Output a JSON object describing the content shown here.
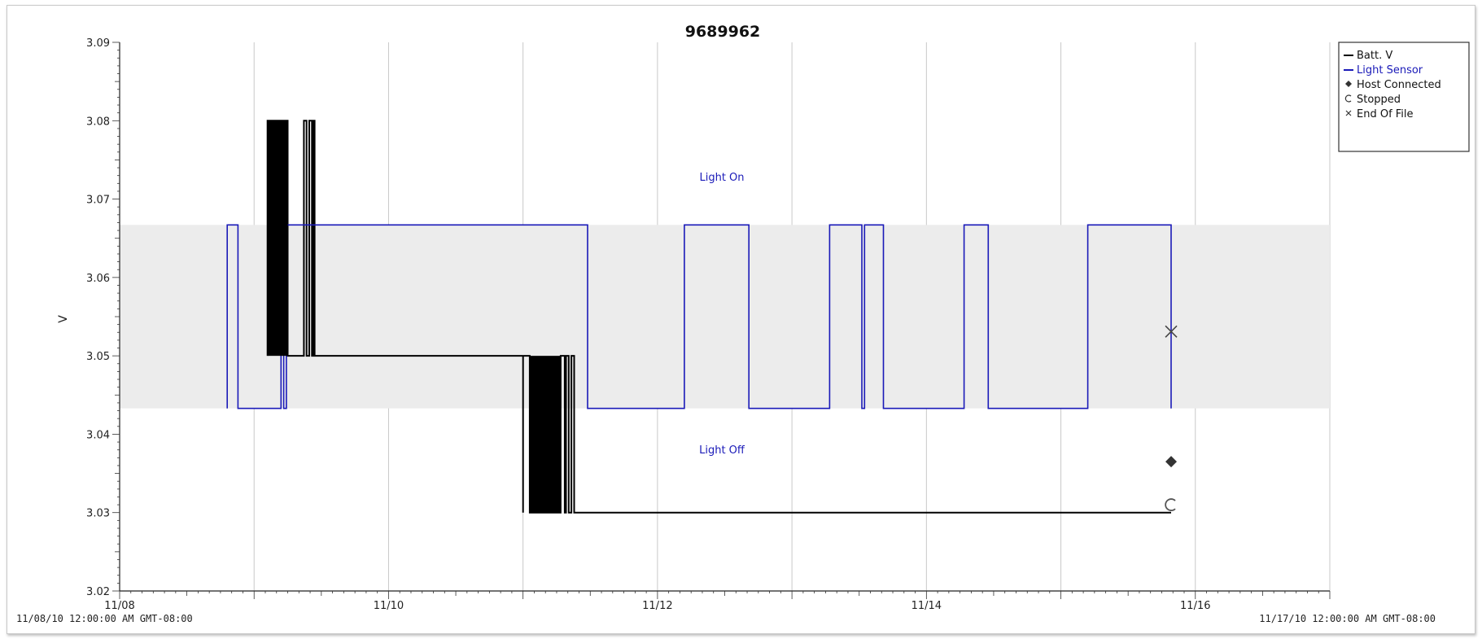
{
  "chart_data": {
    "type": "line",
    "title": "9689962",
    "ylabel": "V",
    "xlabel": "",
    "ylim": [
      3.02,
      3.09
    ],
    "y_ticks": [
      "3.02",
      "3.03",
      "3.04",
      "3.05",
      "3.06",
      "3.07",
      "3.08",
      "3.09"
    ],
    "x_start_label": "11/08/10 12:00:00 AM GMT-08:00",
    "x_end_label": "11/17/10 12:00:00 AM GMT-08:00",
    "x_ticks": [
      "11/08",
      "11/10",
      "11/12",
      "11/14",
      "11/16"
    ],
    "x_tick_days": [
      8,
      10,
      12,
      14,
      16
    ],
    "x_grid_days": [
      9,
      10,
      11,
      12,
      13,
      14,
      15,
      16,
      17
    ],
    "xlim_days": [
      8,
      17
    ],
    "grid": true,
    "legend_position": "top-right",
    "band": {
      "label_on": "Light On",
      "label_off": "Light Off",
      "high": 3.0667,
      "low": 3.0433,
      "color": "#ececec"
    },
    "series": [
      {
        "name": "Batt. V",
        "color": "#000000",
        "points": [
          [
            9.1,
            3.05
          ],
          [
            9.1,
            3.08
          ],
          [
            9.25,
            3.08
          ],
          [
            9.25,
            3.05
          ],
          [
            9.37,
            3.05
          ],
          [
            9.37,
            3.08
          ],
          [
            9.39,
            3.08
          ],
          [
            9.39,
            3.05
          ],
          [
            9.41,
            3.05
          ],
          [
            9.41,
            3.08
          ],
          [
            9.43,
            3.08
          ],
          [
            9.43,
            3.05
          ],
          [
            9.44,
            3.05
          ],
          [
            9.44,
            3.08
          ],
          [
            9.45,
            3.08
          ],
          [
            9.45,
            3.05
          ],
          [
            11.0,
            3.05
          ],
          [
            11.0,
            3.03
          ],
          [
            11.0,
            3.05
          ],
          [
            11.05,
            3.05
          ],
          [
            11.05,
            3.03
          ],
          [
            11.28,
            3.03
          ],
          [
            11.28,
            3.05
          ],
          [
            11.31,
            3.05
          ],
          [
            11.31,
            3.03
          ],
          [
            11.32,
            3.03
          ],
          [
            11.32,
            3.05
          ],
          [
            11.34,
            3.05
          ],
          [
            11.34,
            3.03
          ],
          [
            11.36,
            3.03
          ],
          [
            11.36,
            3.05
          ],
          [
            11.38,
            3.05
          ],
          [
            11.38,
            3.03
          ],
          [
            15.82,
            3.03
          ]
        ]
      },
      {
        "name": "Light Sensor",
        "color": "#1a1ab8",
        "points": [
          [
            8.8,
            3.0433
          ],
          [
            8.8,
            3.0667
          ],
          [
            8.88,
            3.0667
          ],
          [
            8.88,
            3.0433
          ],
          [
            9.2,
            3.0433
          ],
          [
            9.2,
            3.0667
          ],
          [
            9.22,
            3.0667
          ],
          [
            9.22,
            3.0433
          ],
          [
            9.24,
            3.0433
          ],
          [
            9.24,
            3.0667
          ],
          [
            11.48,
            3.0667
          ],
          [
            11.48,
            3.0433
          ],
          [
            12.2,
            3.0433
          ],
          [
            12.2,
            3.0667
          ],
          [
            12.68,
            3.0667
          ],
          [
            12.68,
            3.0433
          ],
          [
            13.28,
            3.0433
          ],
          [
            13.28,
            3.0667
          ],
          [
            13.52,
            3.0667
          ],
          [
            13.52,
            3.0433
          ],
          [
            13.54,
            3.0433
          ],
          [
            13.54,
            3.0667
          ],
          [
            13.68,
            3.0667
          ],
          [
            13.68,
            3.0433
          ],
          [
            14.28,
            3.0433
          ],
          [
            14.28,
            3.0667
          ],
          [
            14.46,
            3.0667
          ],
          [
            14.46,
            3.0433
          ],
          [
            15.2,
            3.0433
          ],
          [
            15.2,
            3.0667
          ],
          [
            15.82,
            3.0667
          ],
          [
            15.82,
            3.0433
          ]
        ]
      }
    ],
    "markers": [
      {
        "name": "Host Connected",
        "symbol": "diamond",
        "x": 15.82,
        "y": 3.0365
      },
      {
        "name": "Stopped",
        "symbol": "circle",
        "x": 15.82,
        "y": 3.031
      },
      {
        "name": "End Of File",
        "symbol": "x",
        "x": 15.82,
        "y": 3.0531
      }
    ],
    "legend": [
      "Batt. V",
      "Light Sensor",
      "Host Connected",
      "Stopped",
      "End Of File"
    ]
  }
}
